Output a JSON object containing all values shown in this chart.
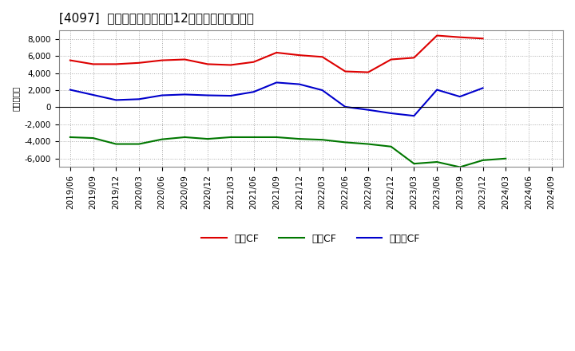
{
  "title": "[4097]  キャッシュフローの12か月移動合計の推移",
  "ylabel": "（百万円）",
  "x_labels": [
    "2019/06",
    "2019/09",
    "2019/12",
    "2020/03",
    "2020/06",
    "2020/09",
    "2020/12",
    "2021/03",
    "2021/06",
    "2021/09",
    "2021/12",
    "2022/03",
    "2022/06",
    "2022/09",
    "2022/12",
    "2023/03",
    "2023/06",
    "2023/09",
    "2023/12",
    "2024/03",
    "2024/06",
    "2024/09"
  ],
  "operating_cf": [
    5500,
    5050,
    5050,
    5200,
    5500,
    5600,
    5050,
    4950,
    5300,
    6400,
    6100,
    5900,
    4200,
    4100,
    5600,
    5800,
    8400,
    8200,
    8050,
    null,
    null,
    null
  ],
  "investing_cf": [
    -3500,
    -3600,
    -4300,
    -4300,
    -3750,
    -3500,
    -3700,
    -3500,
    -3500,
    -3500,
    -3700,
    -3800,
    -4100,
    -4300,
    -4600,
    -6600,
    -6400,
    -7000,
    -6200,
    -6000,
    null,
    null
  ],
  "free_cf": [
    2050,
    1450,
    850,
    950,
    1400,
    1500,
    1400,
    1350,
    1800,
    2900,
    2700,
    2000,
    50,
    -300,
    -700,
    -1000,
    2050,
    1250,
    2250,
    null,
    null,
    null
  ],
  "operating_color": "#dd0000",
  "investing_color": "#007700",
  "free_color": "#0000cc",
  "ylim": [
    -7000,
    9000
  ],
  "yticks": [
    -6000,
    -4000,
    -2000,
    0,
    2000,
    4000,
    6000,
    8000
  ],
  "bg_color": "#ffffff",
  "plot_bg_color": "#ffffff",
  "grid_color": "#aaaaaa",
  "title_fontsize": 11,
  "axis_fontsize": 7.5,
  "legend_labels": [
    "営業CF",
    "投資CF",
    "フリーCF"
  ]
}
